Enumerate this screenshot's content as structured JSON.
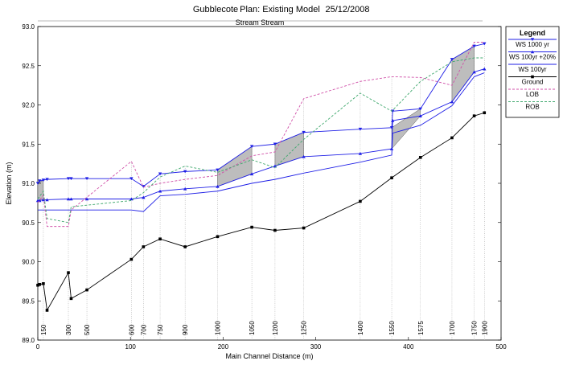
{
  "header": {
    "project": "Gubblecote",
    "plan": "Plan: Existing Model",
    "date": "25/12/2008"
  },
  "chart_data": {
    "type": "line",
    "title": "Stream Stream",
    "xlabel": "Main Channel Distance (m)",
    "ylabel": "Elevation (m)",
    "xlim": [
      0,
      500
    ],
    "ylim": [
      89.0,
      93.0
    ],
    "x_ticks": [
      0,
      100,
      200,
      300,
      400,
      500
    ],
    "y_ticks": [
      89.0,
      89.5,
      90.0,
      90.5,
      91.0,
      91.5,
      92.0,
      92.5,
      93.0
    ],
    "sections": [
      {
        "label": "150",
        "x": 6
      },
      {
        "label": "300",
        "x": 33
      },
      {
        "label": "500",
        "x": 53
      },
      {
        "label": "600",
        "x": 101
      },
      {
        "label": "700",
        "x": 114
      },
      {
        "label": "750",
        "x": 132
      },
      {
        "label": "900",
        "x": 159
      },
      {
        "label": "1000",
        "x": 194
      },
      {
        "label": "1050",
        "x": 231
      },
      {
        "label": "1200",
        "x": 256
      },
      {
        "label": "1250",
        "x": 287
      },
      {
        "label": "1400",
        "x": 348
      },
      {
        "label": "1550",
        "x": 382
      },
      {
        "label": "1575",
        "x": 413
      },
      {
        "label": "1700",
        "x": 447
      },
      {
        "label": "1750",
        "x": 471
      },
      {
        "label": "1900",
        "x": 482
      }
    ],
    "grid": false,
    "legend_position": "right",
    "legend_title": "Legend",
    "series": [
      {
        "name": "WS  1000 yr",
        "color": "#1f1fe6",
        "marker": "triangle-down",
        "x": [
          0,
          2,
          6,
          10,
          33,
          36,
          53,
          101,
          114,
          132,
          159,
          194,
          231,
          256,
          287,
          348,
          382,
          383,
          413,
          447,
          471,
          482
        ],
        "y": [
          91.0,
          91.03,
          91.04,
          91.05,
          91.06,
          91.06,
          91.06,
          91.06,
          90.96,
          91.12,
          91.15,
          91.17,
          91.47,
          91.5,
          91.65,
          91.69,
          91.71,
          91.92,
          91.95,
          92.58,
          92.75,
          92.78
        ]
      },
      {
        "name": "WS  100yr +20%",
        "color": "#1f1fe6",
        "marker": "triangle-up",
        "x": [
          0,
          2,
          6,
          10,
          33,
          36,
          53,
          101,
          114,
          132,
          159,
          194,
          231,
          256,
          287,
          348,
          382,
          383,
          413,
          447,
          471,
          482
        ],
        "y": [
          90.78,
          90.78,
          90.79,
          90.79,
          90.8,
          90.8,
          90.8,
          90.8,
          90.82,
          90.9,
          90.93,
          90.96,
          91.12,
          91.22,
          91.34,
          91.38,
          91.44,
          91.8,
          91.86,
          92.04,
          92.42,
          92.46
        ]
      },
      {
        "name": "WS  100yr",
        "color": "#1f1fe6",
        "marker": "none",
        "x": [
          0,
          2,
          6,
          10,
          33,
          36,
          53,
          101,
          114,
          132,
          159,
          194,
          231,
          256,
          287,
          348,
          382,
          383,
          413,
          447,
          471,
          482
        ],
        "y": [
          90.66,
          90.66,
          90.66,
          90.66,
          90.66,
          90.66,
          90.66,
          90.66,
          90.64,
          90.84,
          90.86,
          90.9,
          91.0,
          91.05,
          91.13,
          91.27,
          91.36,
          91.64,
          91.74,
          91.99,
          92.36,
          92.41
        ]
      },
      {
        "name": "Ground",
        "color": "#000000",
        "marker": "square",
        "x": [
          0,
          2,
          6,
          10,
          33,
          36,
          53,
          101,
          114,
          132,
          159,
          194,
          231,
          256,
          287,
          348,
          382,
          413,
          447,
          471,
          482
        ],
        "y": [
          89.7,
          89.71,
          89.72,
          89.38,
          89.86,
          89.53,
          89.64,
          90.03,
          90.19,
          90.29,
          90.19,
          90.32,
          90.44,
          90.4,
          90.43,
          90.77,
          91.07,
          91.33,
          91.58,
          91.86,
          91.9
        ]
      },
      {
        "name": "LOB",
        "color": "#d04fa8",
        "marker": "none",
        "x": [
          0,
          6,
          10,
          33,
          36,
          101,
          114,
          132,
          159,
          194,
          231,
          256,
          287,
          348,
          382,
          413,
          447,
          471,
          482
        ],
        "y": [
          90.75,
          90.85,
          90.45,
          90.45,
          90.66,
          91.28,
          90.95,
          91.0,
          91.05,
          91.1,
          91.35,
          91.4,
          92.08,
          92.3,
          92.36,
          92.35,
          92.25,
          92.8,
          92.8
        ]
      },
      {
        "name": "ROB",
        "color": "#3fa86d",
        "marker": "none",
        "x": [
          0,
          6,
          10,
          33,
          36,
          101,
          114,
          132,
          159,
          194,
          231,
          256,
          287,
          348,
          382,
          413,
          447,
          471,
          482
        ],
        "y": [
          90.8,
          90.9,
          90.55,
          90.5,
          90.7,
          90.78,
          90.88,
          91.08,
          91.22,
          91.14,
          91.3,
          91.2,
          91.56,
          92.15,
          91.92,
          92.3,
          92.55,
          92.6,
          92.6
        ]
      }
    ]
  }
}
